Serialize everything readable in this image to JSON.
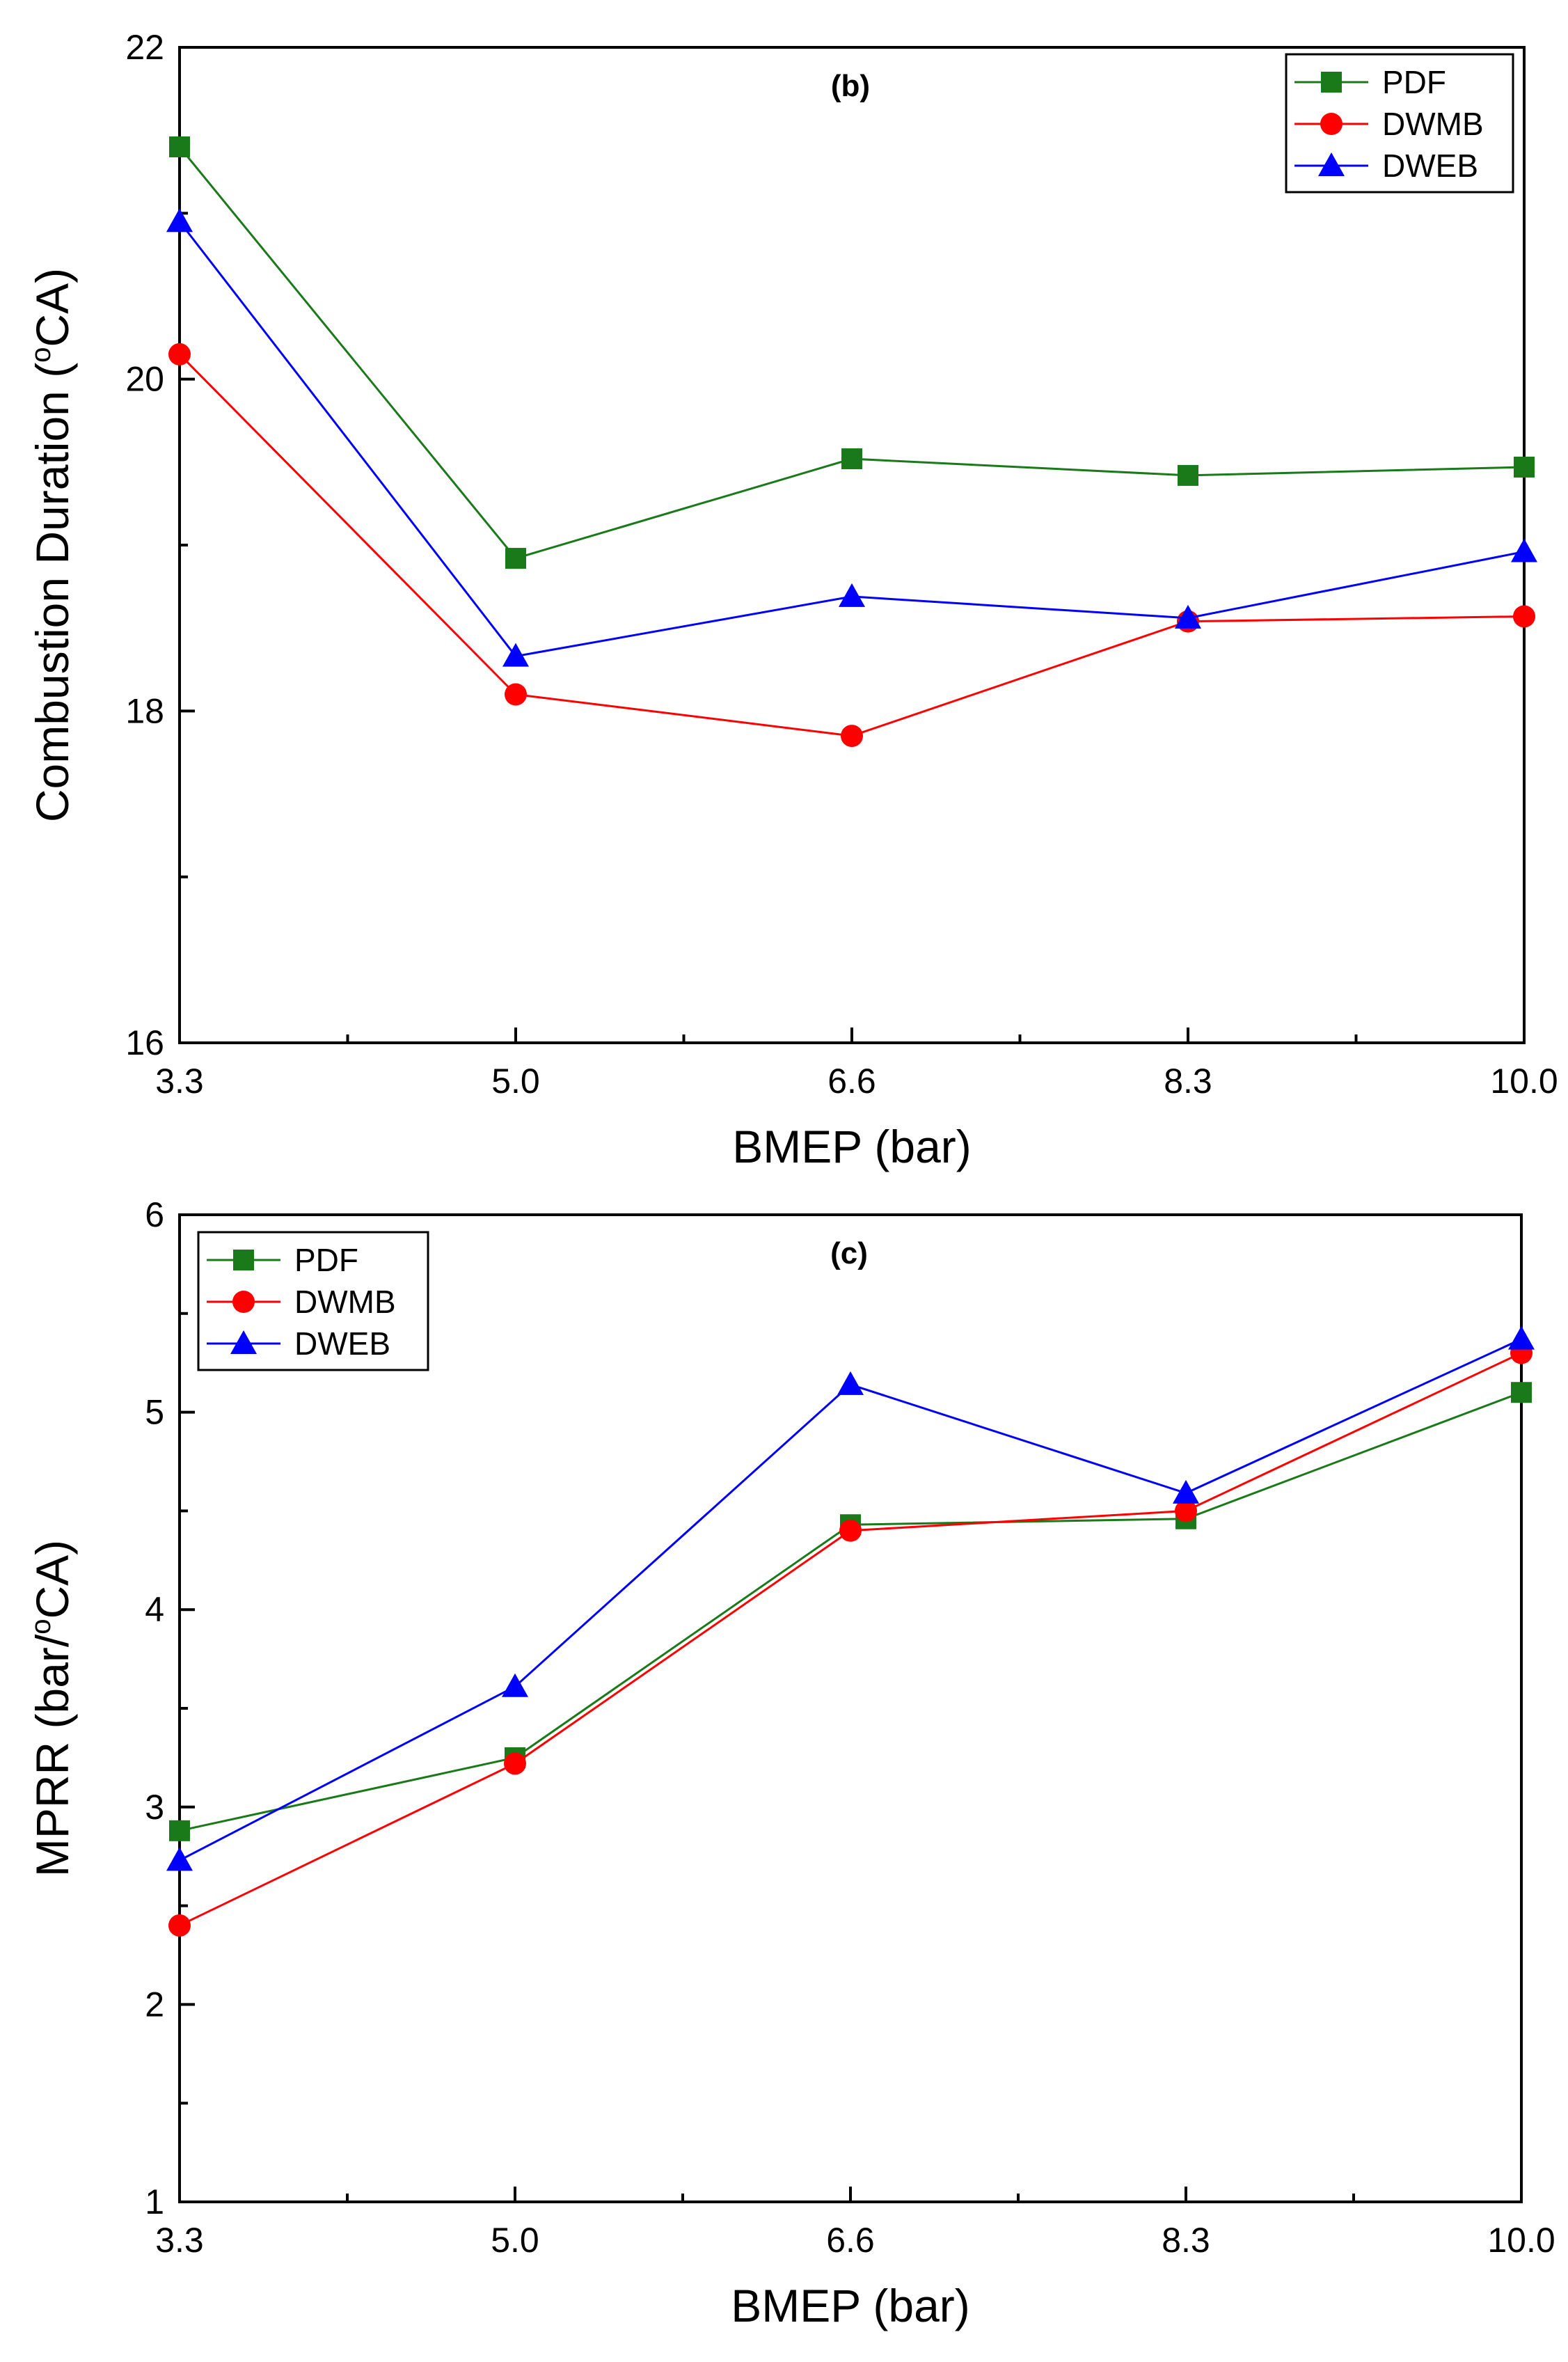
{
  "chart_data": [
    {
      "type": "line",
      "panel": "(b)",
      "title": "",
      "categories": [
        "3.3",
        "5.0",
        "6.6",
        "8.3",
        "10.0"
      ],
      "xlabel": "BMEP (bar)",
      "ylabel_main": "Combustion Duration (",
      "ylabel_sup": "o",
      "ylabel_tail": "CA)",
      "ylim": [
        16,
        22
      ],
      "yticks": [
        "16",
        "18",
        "20",
        "22"
      ],
      "legend_position": "top-right",
      "series": [
        {
          "name": "PDF",
          "color": "#1a7a1a",
          "marker": "square",
          "values": [
            21.4,
            18.92,
            19.52,
            19.42,
            19.47
          ]
        },
        {
          "name": "DWMB",
          "color": "#ff0000",
          "marker": "circle",
          "values": [
            20.15,
            18.1,
            17.85,
            18.54,
            18.57
          ]
        },
        {
          "name": "DWEB",
          "color": "#0000ff",
          "marker": "triangle",
          "values": [
            20.95,
            18.33,
            18.69,
            18.56,
            18.96
          ]
        }
      ]
    },
    {
      "type": "line",
      "panel": "(c)",
      "title": "",
      "categories": [
        "3.3",
        "5.0",
        "6.6",
        "8.3",
        "10.0"
      ],
      "xlabel": "BMEP (bar)",
      "ylabel_main": "MPRR (bar/",
      "ylabel_sup": "o",
      "ylabel_tail": "CA)",
      "ylim": [
        1,
        6
      ],
      "yticks": [
        "1",
        "2",
        "3",
        "4",
        "5",
        "6"
      ],
      "legend_position": "top-left",
      "series": [
        {
          "name": "PDF",
          "color": "#1a7a1a",
          "marker": "square",
          "values": [
            2.88,
            3.25,
            4.43,
            4.46,
            5.1
          ]
        },
        {
          "name": "DWMB",
          "color": "#ff0000",
          "marker": "circle",
          "values": [
            2.4,
            3.22,
            4.4,
            4.5,
            5.3
          ]
        },
        {
          "name": "DWEB",
          "color": "#0000ff",
          "marker": "triangle",
          "values": [
            2.73,
            3.61,
            5.14,
            4.59,
            5.37
          ]
        }
      ]
    }
  ]
}
